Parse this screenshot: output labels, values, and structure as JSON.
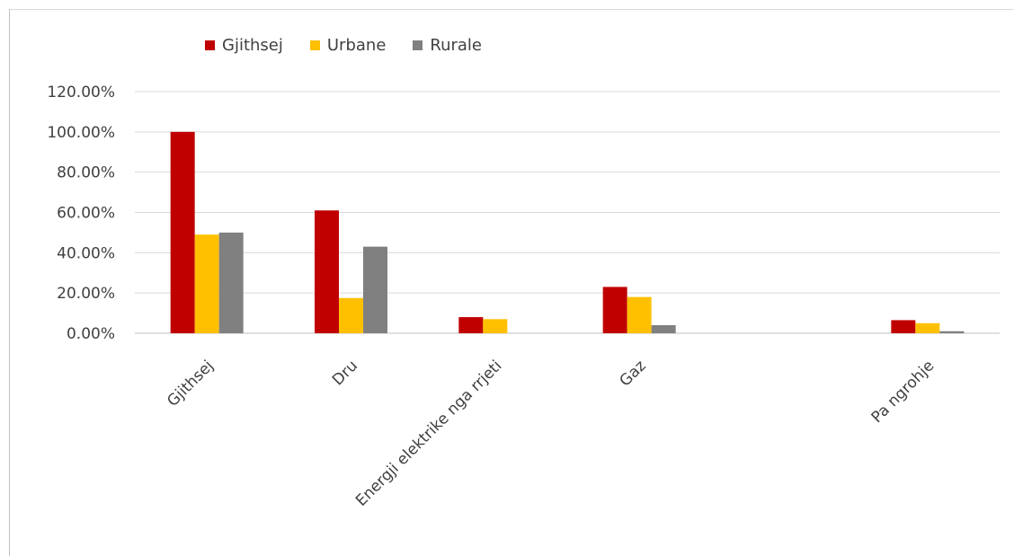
{
  "chart_data": {
    "type": "bar",
    "categories": [
      "Gjithsej",
      "Dru",
      "Energji elektrike nga rrjeti",
      "Gaz",
      "",
      "Pa ngrohje"
    ],
    "series": [
      {
        "name": "Gjithsej",
        "color": "#c00000",
        "values": [
          100,
          61,
          8,
          23,
          null,
          6.5
        ]
      },
      {
        "name": "Urbane",
        "color": "#ffc000",
        "values": [
          49,
          17.5,
          7,
          18,
          null,
          5
        ]
      },
      {
        "name": "Rurale",
        "color": "#808080",
        "values": [
          50,
          43,
          null,
          4,
          null,
          1
        ]
      }
    ],
    "yticks": [
      "0.00%",
      "20.00%",
      "40.00%",
      "60.00%",
      "80.00%",
      "100.00%",
      "120.00%"
    ],
    "ylim": [
      0,
      120
    ],
    "grid": true,
    "legend_position": "top-left"
  }
}
